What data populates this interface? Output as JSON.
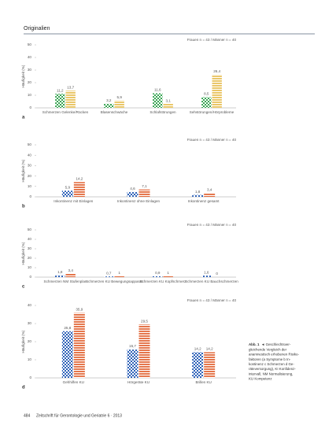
{
  "header": {
    "section": "Originalien"
  },
  "footer": {
    "page": "484",
    "journal": "Zeitschrift für Gerontologie und Geriatrie 6 · 2013"
  },
  "caption": {
    "label": "Abb. 1",
    "lines": [
      "◄ Geschlechtsver-",
      "gleichende Vergleich der",
      "anamnestisch erhobenen Risiko-",
      "faktoren (a Symptome b In-",
      "kontinenz c Schmerzen d Ge-",
      "räteversorgung), KI Konfidenz-",
      "intervall, NM Normalisierung,",
      "KU Kompetenz"
    ]
  },
  "chart_data": [
    {
      "type": "bar",
      "panel": "a",
      "ylabel": "Häufigkeit (%)",
      "legend": "Frauen n = 43 / Männer n = 40",
      "categories": [
        "Schmerzen Gelenke/Rücken",
        "Blasenschwäche",
        "Schlafstörungen",
        "Sehstörungen/Hörprobleme"
      ],
      "series": [
        {
          "name": "Frauen",
          "color": "#3aa655",
          "pattern": "checker",
          "values": [
            11.2,
            3.2,
            11.6,
            8.5
          ],
          "value_labels": [
            "11,2",
            "3,2",
            "11,6",
            "8,5"
          ]
        },
        {
          "name": "Männer",
          "color": "#e8c15a",
          "pattern": "stripes",
          "values": [
            13.7,
            5.9,
            3.1,
            26.4
          ],
          "value_labels": [
            "13,7",
            "5,9",
            "3,1",
            "26,4"
          ]
        }
      ],
      "ylim": [
        0,
        50
      ],
      "yticks": [
        0,
        10,
        20,
        30,
        40,
        50
      ]
    },
    {
      "type": "bar",
      "panel": "b",
      "ylabel": "Häufigkeit (%)",
      "legend": "Frauen n = 43 / Männer n = 40",
      "categories": [
        "Inkontinenz mit Einlagen",
        "Inkontinenz ohne Einlagen",
        "Inkontinenz gesamt"
      ],
      "series": [
        {
          "name": "Frauen",
          "color": "#2f62b8",
          "pattern": "checker",
          "values": [
            5.9,
            4.6,
            1.8
          ],
          "value_labels": [
            "5,9",
            "4,6",
            "1,8"
          ]
        },
        {
          "name": "Männer",
          "color": "#e2693a",
          "pattern": "stripes",
          "values": [
            14.2,
            7.1,
            3.4
          ],
          "value_labels": [
            "14,2",
            "7,1",
            "3,4"
          ]
        }
      ],
      "ylim": [
        0,
        50
      ],
      "yticks": [
        0,
        10,
        20,
        30,
        40,
        50
      ]
    },
    {
      "type": "bar",
      "panel": "c",
      "ylabel": "Häufigkeit (%)",
      "legend": "Frauen n = 43 / Männer n = 40",
      "categories": [
        "Schmerzen NM Stufenplan",
        "Schmerzen KU Bewegungsapparat",
        "Schmerzen KU Kopfschmerz",
        "Schmerzen KU Bauchschmerzen"
      ],
      "series": [
        {
          "name": "Frauen",
          "color": "#2f62b8",
          "pattern": "checker",
          "values": [
            1.8,
            0.7,
            0.9,
            1.6
          ],
          "value_labels": [
            "1,8",
            "0,7",
            "0,9",
            "1,6"
          ]
        },
        {
          "name": "Männer",
          "color": "#e2693a",
          "pattern": "stripes",
          "values": [
            3.4,
            1,
            1,
            0
          ],
          "value_labels": [
            "3,4",
            "1",
            "1",
            "0"
          ]
        }
      ],
      "ylim": [
        0,
        50
      ],
      "yticks": [
        0,
        10,
        20,
        30,
        40,
        50
      ]
    },
    {
      "type": "bar",
      "panel": "d",
      "ylabel": "Häufigkeit (%)",
      "legend": "Frauen n = 43 / Männer n = 40",
      "categories": [
        "Gehhilfen KU",
        "Hörgeräte KU",
        "Brillen KU"
      ],
      "series": [
        {
          "name": "Frauen",
          "color": "#2f62b8",
          "pattern": "checker",
          "values": [
            25.8,
            15.7,
            14.2
          ],
          "value_labels": [
            "25,8",
            "15,7",
            "14,2"
          ]
        },
        {
          "name": "Männer",
          "color": "#e2693a",
          "pattern": "stripes",
          "values": [
            35.9,
            29.5,
            14.2
          ],
          "value_labels": [
            "35,9",
            "29,5",
            "14,2"
          ]
        }
      ],
      "ylim": [
        0,
        40
      ],
      "yticks": [
        0,
        10,
        20,
        30,
        40
      ]
    }
  ]
}
